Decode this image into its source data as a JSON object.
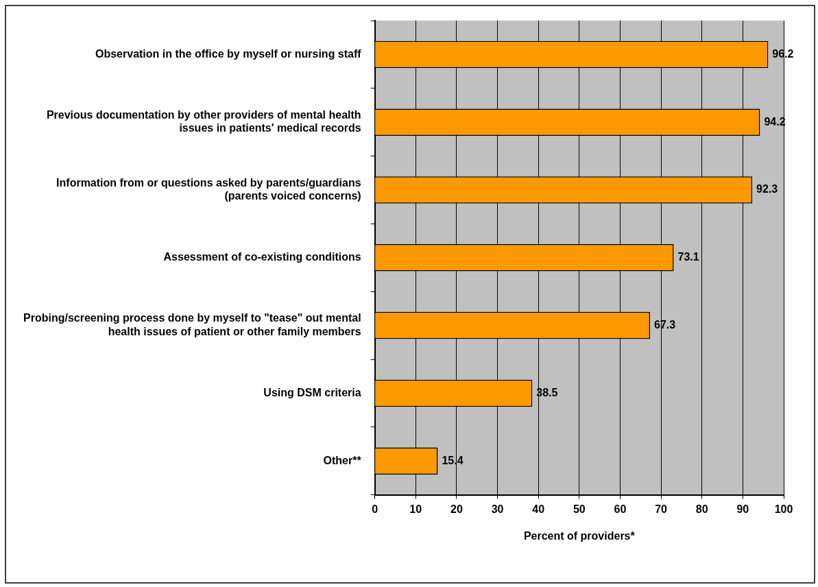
{
  "chart_data": {
    "type": "bar",
    "orientation": "horizontal",
    "xlabel": "Percent of providers*",
    "categories": [
      "Observation in the office by myself or nursing staff",
      "Previous documentation by other providers of mental health issues in patients' medical records",
      "Information from or questions asked by parents/guardians (parents voiced concerns)",
      "Assessment of co-existing conditions",
      "Probing/screening process done by myself to \"tease\" out mental health issues of patient or other family members",
      "Using DSM criteria",
      "Other**"
    ],
    "values": [
      96.2,
      94.2,
      92.3,
      73.1,
      67.3,
      38.5,
      15.4
    ],
    "color": "#ff9900",
    "data_labels": true,
    "grid": "x",
    "xlim": [
      0,
      100
    ],
    "xticks": [
      0,
      10,
      20,
      30,
      40,
      50,
      60,
      70,
      80,
      90,
      100
    ]
  }
}
